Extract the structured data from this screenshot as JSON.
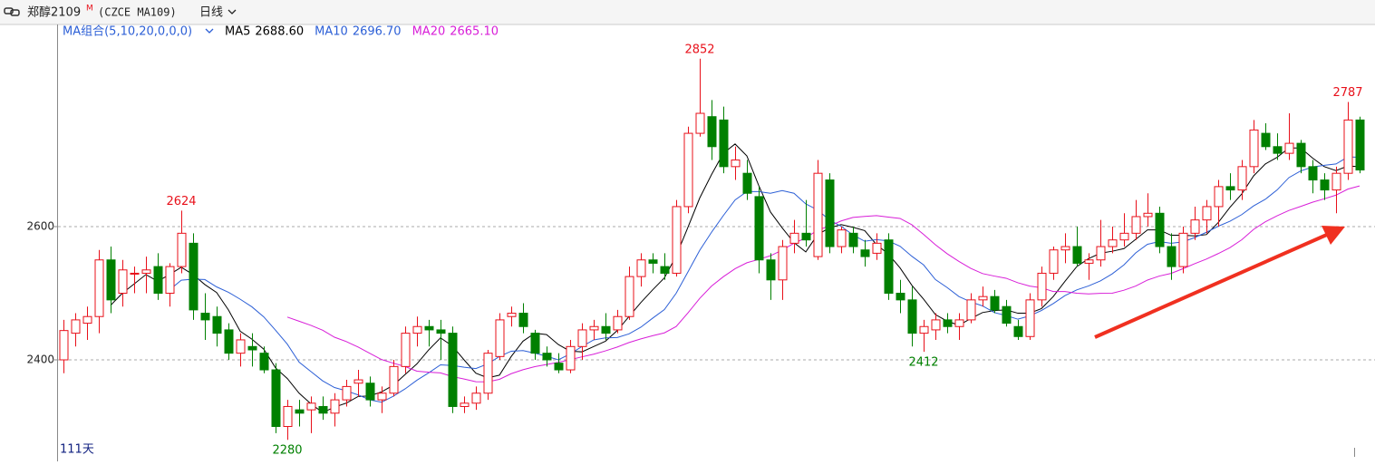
{
  "header": {
    "name": "郑醇2109",
    "badge": "M",
    "code": "(CZCE MA109)",
    "period": "日线"
  },
  "chart_data": {
    "type": "candlestick",
    "ma_group": "MA组合(5,10,20,0,0,0)",
    "ma": [
      {
        "name": "MA5",
        "value": 2688.6,
        "label": "2688.60",
        "color": "#000000"
      },
      {
        "name": "MA10",
        "value": 2696.7,
        "label": "2696.70",
        "color": "#2c5fd6"
      },
      {
        "name": "MA20",
        "value": 2665.1,
        "label": "2665.10",
        "color": "#d81ed8"
      }
    ],
    "open": [
      2400,
      2440,
      2455,
      2465,
      2550,
      2500,
      2530,
      2530,
      2540,
      2500,
      2540,
      2575,
      2470,
      2465,
      2445,
      2410,
      2420,
      2410,
      2385,
      2300,
      2325,
      2325,
      2330,
      2320,
      2340,
      2365,
      2365,
      2340,
      2350,
      2390,
      2440,
      2450,
      2445,
      2440,
      2330,
      2335,
      2350,
      2405,
      2465,
      2470,
      2440,
      2410,
      2395,
      2385,
      2420,
      2445,
      2450,
      2445,
      2465,
      2525,
      2550,
      2540,
      2530,
      2630,
      2740,
      2765,
      2760,
      2690,
      2680,
      2645,
      2550,
      2520,
      2575,
      2590,
      2555,
      2670,
      2570,
      2590,
      2565,
      2560,
      2580,
      2500,
      2490,
      2440,
      2445,
      2460,
      2450,
      2460,
      2490,
      2495,
      2480,
      2450,
      2435,
      2490,
      2530,
      2565,
      2570,
      2545,
      2550,
      2570,
      2580,
      2590,
      2615,
      2620,
      2570,
      2540,
      2590,
      2610,
      2630,
      2660,
      2655,
      2690,
      2740,
      2720,
      2710,
      2725,
      2690,
      2670,
      2655,
      2680,
      2760
    ],
    "high": [
      2460,
      2470,
      2480,
      2565,
      2570,
      2550,
      2540,
      2555,
      2560,
      2545,
      2624,
      2590,
      2500,
      2480,
      2455,
      2440,
      2440,
      2420,
      2395,
      2340,
      2340,
      2345,
      2345,
      2350,
      2370,
      2385,
      2375,
      2360,
      2400,
      2450,
      2465,
      2460,
      2460,
      2450,
      2345,
      2360,
      2415,
      2470,
      2480,
      2485,
      2445,
      2420,
      2410,
      2430,
      2455,
      2460,
      2470,
      2475,
      2540,
      2560,
      2560,
      2560,
      2640,
      2750,
      2852,
      2790,
      2780,
      2720,
      2700,
      2660,
      2560,
      2580,
      2610,
      2640,
      2700,
      2680,
      2600,
      2600,
      2580,
      2590,
      2590,
      2520,
      2510,
      2460,
      2470,
      2470,
      2470,
      2500,
      2510,
      2505,
      2490,
      2460,
      2500,
      2540,
      2570,
      2590,
      2600,
      2560,
      2610,
      2600,
      2620,
      2640,
      2650,
      2630,
      2590,
      2600,
      2630,
      2640,
      2670,
      2680,
      2700,
      2760,
      2755,
      2740,
      2770,
      2730,
      2700,
      2680,
      2690,
      2787,
      2765
    ],
    "low": [
      2380,
      2420,
      2430,
      2440,
      2470,
      2480,
      2500,
      2500,
      2490,
      2480,
      2530,
      2460,
      2430,
      2420,
      2400,
      2390,
      2390,
      2380,
      2290,
      2280,
      2300,
      2290,
      2310,
      2300,
      2330,
      2345,
      2330,
      2320,
      2345,
      2380,
      2420,
      2420,
      2400,
      2320,
      2320,
      2325,
      2340,
      2400,
      2450,
      2440,
      2400,
      2390,
      2380,
      2380,
      2400,
      2430,
      2430,
      2440,
      2460,
      2510,
      2530,
      2520,
      2525,
      2620,
      2735,
      2700,
      2680,
      2670,
      2640,
      2530,
      2490,
      2490,
      2560,
      2570,
      2550,
      2560,
      2560,
      2560,
      2540,
      2550,
      2490,
      2470,
      2420,
      2412,
      2430,
      2440,
      2430,
      2455,
      2480,
      2470,
      2450,
      2430,
      2430,
      2480,
      2520,
      2545,
      2540,
      2520,
      2540,
      2560,
      2570,
      2580,
      2600,
      2560,
      2520,
      2530,
      2580,
      2590,
      2600,
      2640,
      2640,
      2680,
      2715,
      2700,
      2700,
      2680,
      2650,
      2640,
      2620,
      2670,
      2680
    ],
    "close": [
      2444,
      2460,
      2465,
      2550,
      2490,
      2535,
      2530,
      2535,
      2500,
      2540,
      2590,
      2475,
      2460,
      2440,
      2410,
      2430,
      2415,
      2385,
      2300,
      2330,
      2320,
      2335,
      2320,
      2340,
      2360,
      2370,
      2340,
      2350,
      2390,
      2440,
      2450,
      2445,
      2440,
      2330,
      2335,
      2350,
      2410,
      2460,
      2470,
      2450,
      2410,
      2400,
      2385,
      2420,
      2445,
      2450,
      2440,
      2465,
      2525,
      2550,
      2545,
      2530,
      2630,
      2740,
      2770,
      2720,
      2690,
      2700,
      2650,
      2550,
      2520,
      2570,
      2590,
      2580,
      2680,
      2570,
      2595,
      2570,
      2555,
      2575,
      2500,
      2490,
      2440,
      2450,
      2460,
      2450,
      2460,
      2490,
      2495,
      2475,
      2455,
      2435,
      2490,
      2530,
      2565,
      2570,
      2545,
      2550,
      2570,
      2580,
      2590,
      2615,
      2620,
      2570,
      2540,
      2590,
      2610,
      2630,
      2660,
      2655,
      2690,
      2745,
      2720,
      2710,
      2725,
      2690,
      2670,
      2655,
      2680,
      2760,
      2685
    ],
    "up_color": "#e8101a",
    "down_color": "#008000",
    "annotations": [
      {
        "value": 2624,
        "color": "#e8101a"
      },
      {
        "value": 2280,
        "color": "#008000"
      },
      {
        "value": 2852,
        "color": "#e8101a"
      },
      {
        "value": 2412,
        "color": "#008000"
      },
      {
        "value": 2787,
        "color": "#e8101a"
      }
    ],
    "count_label": "111天",
    "ylim": [
      2249,
      2902
    ],
    "yticks": [
      2400,
      2600
    ],
    "grid": true
  }
}
